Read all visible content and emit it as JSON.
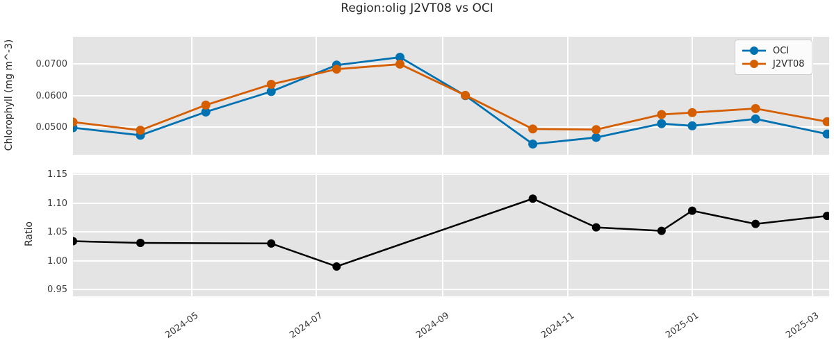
{
  "title": "Region:olig J2VT08 vs OCI",
  "colors": {
    "oci": "#0072b2",
    "j2vt08": "#d55e00",
    "ratio": "#000000",
    "plot_bg": "#e4e4e4",
    "grid": "#ffffff",
    "text": "#262626",
    "tick_text": "#3a3a3a"
  },
  "legend": {
    "position": "upper right",
    "items": [
      {
        "label": "OCI",
        "color_key": "oci"
      },
      {
        "label": "J2VT08",
        "color_key": "j2vt08"
      }
    ]
  },
  "chart_data": [
    {
      "type": "line",
      "title": "Region:olig J2VT08 vs OCI",
      "xlabel": "",
      "ylabel": "Chlorophyll (mg m^-3)",
      "x": [
        "2024-03-04",
        "2024-04-06",
        "2024-05-08",
        "2024-06-09",
        "2024-07-11",
        "2024-08-11",
        "2024-09-12",
        "2024-10-15",
        "2024-11-15",
        "2024-12-17",
        "2025-01-01",
        "2025-02-01",
        "2025-03-08"
      ],
      "series": [
        {
          "name": "OCI",
          "color_key": "oci",
          "values": [
            0.0498,
            0.0474,
            0.0548,
            0.0613,
            0.0697,
            0.0722,
            0.06,
            0.0446,
            0.0467,
            0.0511,
            0.0504,
            0.0526,
            0.0478
          ]
        },
        {
          "name": "J2VT08",
          "color_key": "j2vt08",
          "values": [
            0.0516,
            0.049,
            0.057,
            0.0636,
            0.0684,
            0.07,
            0.0601,
            0.0494,
            0.0492,
            0.054,
            0.0546,
            0.0559,
            0.0517
          ]
        }
      ],
      "xlim": [
        "2024-03-04",
        "2025-03-09"
      ],
      "ylim": [
        0.0412,
        0.0787
      ],
      "yticks": [
        0.05,
        0.06,
        0.07
      ],
      "ytick_labels": [
        "0.0500",
        "0.0600",
        "0.0700"
      ],
      "xticks": [
        "2024-05-01",
        "2024-07-01",
        "2024-09-01",
        "2024-11-01",
        "2025-01-01",
        "2025-03-01"
      ],
      "xtick_labels": [],
      "grid": "on",
      "legend_position": "upper right"
    },
    {
      "type": "line",
      "title": "",
      "xlabel": "",
      "ylabel": "Ratio",
      "x": [
        "2024-03-04",
        "2024-04-06",
        "2024-06-09",
        "2024-07-11",
        "2024-10-15",
        "2024-11-15",
        "2024-12-17",
        "2025-01-01",
        "2025-02-01",
        "2025-03-08"
      ],
      "series": [
        {
          "name": "Ratio",
          "color_key": "ratio",
          "values": [
            1.034,
            1.031,
            1.03,
            0.99,
            1.108,
            1.058,
            1.052,
            1.087,
            1.064,
            1.078
          ]
        }
      ],
      "xlim": [
        "2024-03-04",
        "2025-03-09"
      ],
      "ylim": [
        0.938,
        1.153
      ],
      "yticks": [
        0.95,
        1.0,
        1.05,
        1.1,
        1.15
      ],
      "ytick_labels": [
        "0.95",
        "1.00",
        "1.05",
        "1.10",
        "1.15"
      ],
      "xticks": [
        "2024-05-01",
        "2024-07-01",
        "2024-09-01",
        "2024-11-01",
        "2025-01-01",
        "2025-03-01"
      ],
      "xtick_labels": [
        "2024-05",
        "2024-07",
        "2024-09",
        "2024-11",
        "2025-01",
        "2025-03"
      ],
      "grid": "on"
    }
  ]
}
